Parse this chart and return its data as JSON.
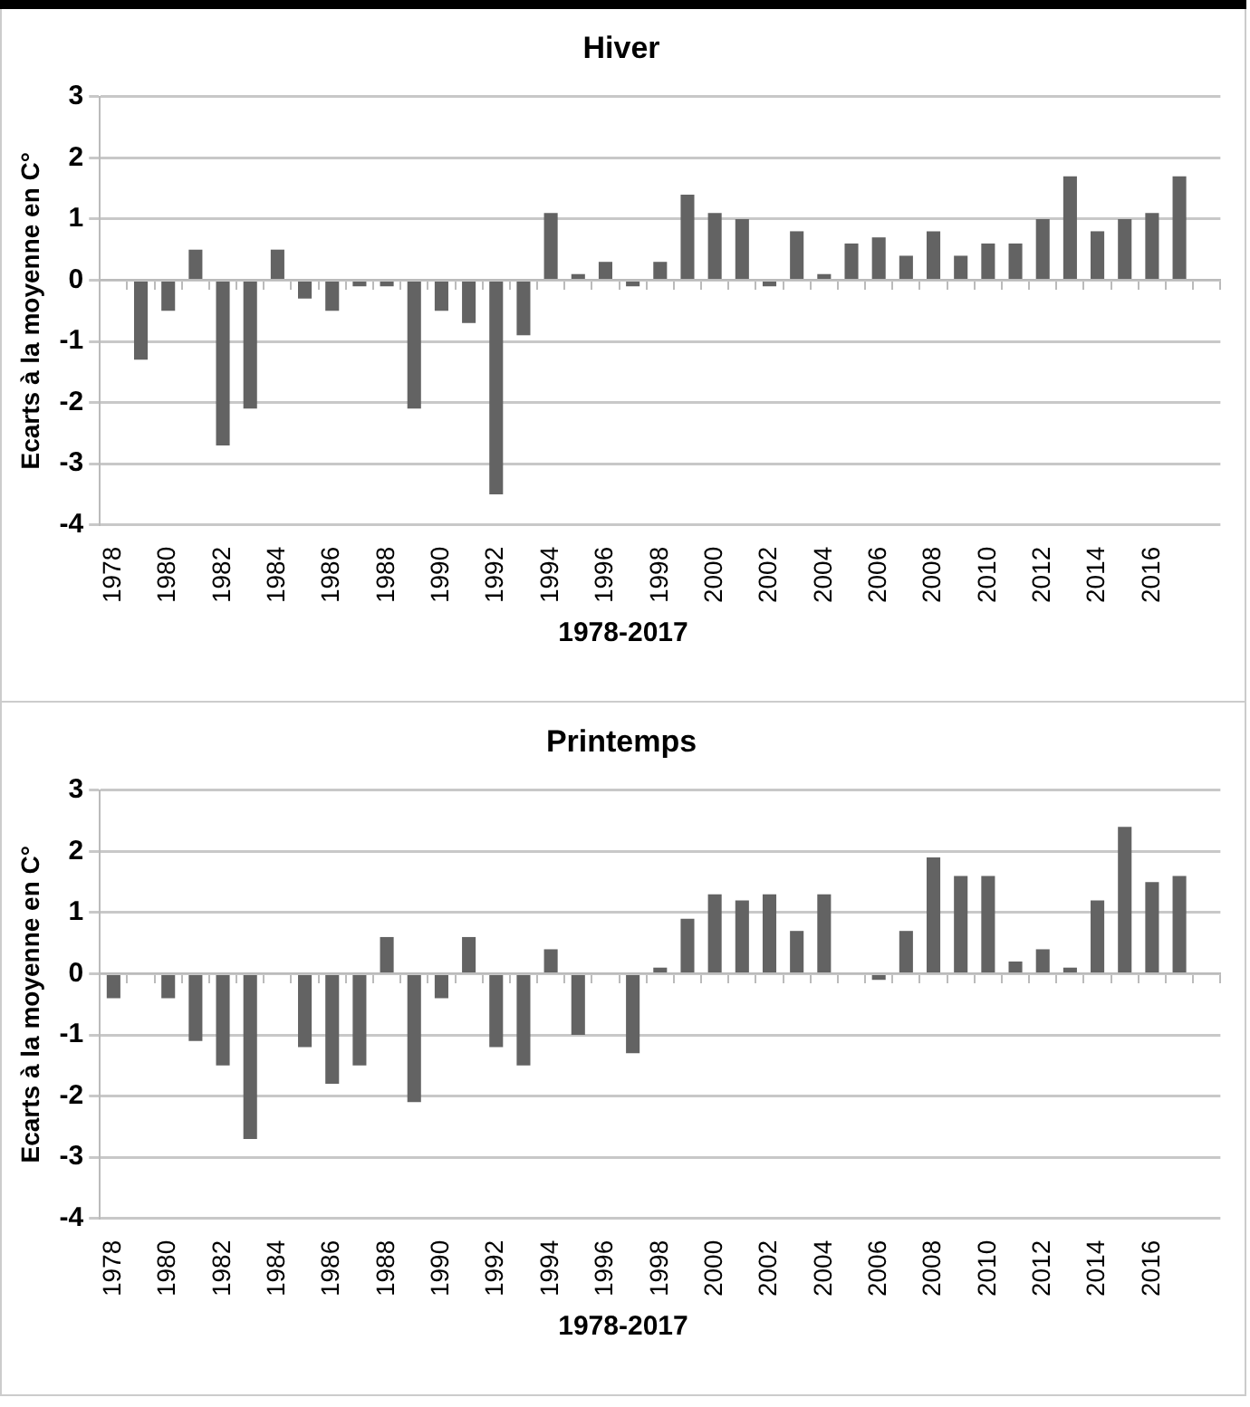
{
  "chart_data": [
    {
      "type": "bar",
      "title": "Hiver",
      "xlabel": "1978-2017",
      "ylabel": "Ecarts à la moyenne en C°",
      "categories": [
        "1978",
        null,
        "1980",
        null,
        "1982",
        null,
        "1984",
        null,
        "1986",
        null,
        "1988",
        null,
        "1990",
        null,
        "1992",
        null,
        "1994",
        null,
        "1996",
        null,
        "1998",
        null,
        "2000",
        null,
        "2002",
        null,
        "2004",
        null,
        "2006",
        null,
        "2008",
        null,
        "2010",
        null,
        "2012",
        null,
        "2014",
        null,
        "2016",
        null,
        null
      ],
      "values": [
        null,
        -1.3,
        -0.5,
        0.5,
        -2.7,
        -2.1,
        0.5,
        -0.3,
        -0.5,
        -0.1,
        -0.1,
        -2.1,
        -0.5,
        -0.7,
        -3.5,
        -0.9,
        1.1,
        0.1,
        0.3,
        -0.1,
        0.3,
        1.4,
        1.1,
        1.0,
        -0.1,
        0.8,
        0.1,
        0.6,
        0.7,
        0.4,
        0.8,
        0.4,
        0.6,
        0.6,
        1.0,
        1.7,
        0.8,
        1.0,
        1.1,
        1.7,
        null
      ],
      "color": "#636363",
      "ylim": [
        -4,
        3
      ],
      "yticks": [
        -4,
        -3,
        -2,
        -1,
        0,
        1,
        2,
        3
      ],
      "grid": "y",
      "legend": false
    },
    {
      "type": "bar",
      "title": "Printemps",
      "xlabel": "1978-2017",
      "ylabel": "Ecarts à la moyenne en C°",
      "categories": [
        "1978",
        null,
        "1980",
        null,
        "1982",
        null,
        "1984",
        null,
        "1986",
        null,
        "1988",
        null,
        "1990",
        null,
        "1992",
        null,
        "1994",
        null,
        "1996",
        null,
        "1998",
        null,
        "2000",
        null,
        "2002",
        null,
        "2004",
        null,
        "2006",
        null,
        "2008",
        null,
        "2010",
        null,
        "2012",
        null,
        "2014",
        null,
        "2016",
        null,
        null
      ],
      "values": [
        -0.4,
        null,
        -0.4,
        -1.1,
        -1.5,
        -2.7,
        null,
        -1.2,
        -1.8,
        -1.5,
        0.6,
        -2.1,
        -0.4,
        0.6,
        -1.2,
        -1.5,
        0.4,
        -1.0,
        null,
        -1.3,
        0.1,
        0.9,
        1.3,
        1.2,
        1.3,
        0.7,
        1.3,
        null,
        -0.1,
        0.7,
        1.9,
        1.6,
        1.6,
        0.2,
        0.4,
        0.1,
        1.2,
        2.4,
        1.5,
        1.6,
        null
      ],
      "color": "#636363",
      "ylim": [
        -4,
        3
      ],
      "yticks": [
        -4,
        -3,
        -2,
        -1,
        0,
        1,
        2,
        3
      ],
      "grid": "y",
      "legend": false
    }
  ]
}
